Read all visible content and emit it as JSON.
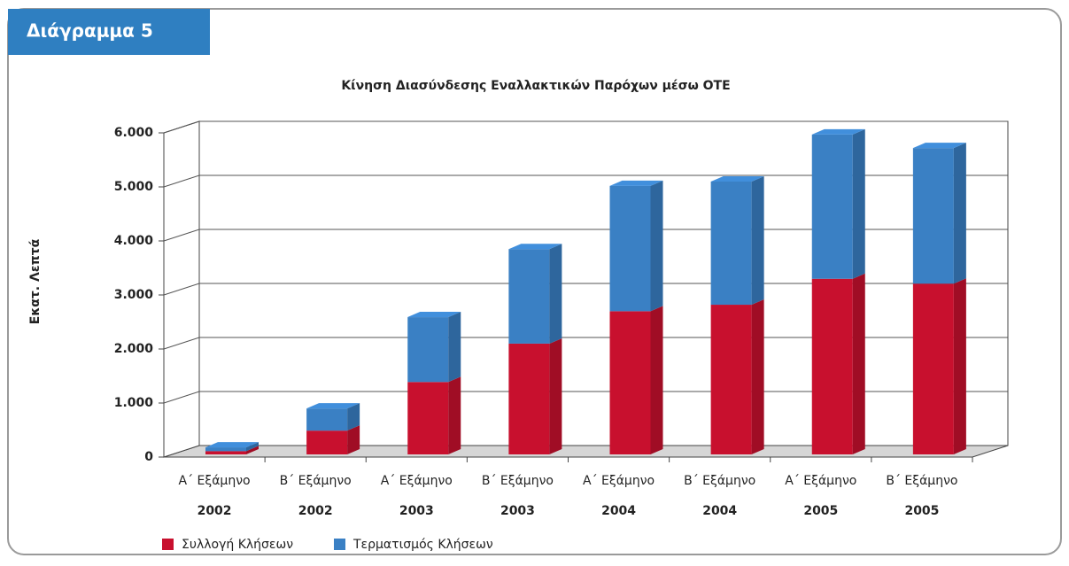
{
  "header": {
    "label": "Διάγραμμα 5"
  },
  "chart_data": {
    "type": "bar3d_stacked",
    "title": "Κίνηση Διασύνδεσης Εναλλακτικών Παρόχων μέσω ΟΤΕ",
    "y_label": "Εκατ. Λεπτά",
    "categories": [
      [
        "Α΄ Εξάμηνο",
        "2002"
      ],
      [
        "Β΄ Εξάμηνο",
        "2002"
      ],
      [
        "Α΄ Εξάμηνο",
        "2003"
      ],
      [
        "Β΄ Εξάμηνο",
        "2003"
      ],
      [
        "Α΄ Εξάμηνο",
        "2004"
      ],
      [
        "Β΄ Εξάμηνο",
        "2004"
      ],
      [
        "Α΄ Εξάμηνο",
        "2005"
      ],
      [
        "Β΄ Εξάμηνο",
        "2005"
      ]
    ],
    "series": [
      {
        "name": "Συλλογή Κλήσεων",
        "color": "#c8102e",
        "values": [
          60,
          440,
          1340,
          2050,
          2650,
          2770,
          3250,
          3160
        ]
      },
      {
        "name": "Τερματισμός Κλήσεων",
        "color": "#3a80c4",
        "values": [
          70,
          410,
          1200,
          1750,
          2320,
          2280,
          2670,
          2510
        ]
      }
    ],
    "ylim": [
      0,
      6000
    ],
    "yticks": [
      0,
      {
        "value": 1000,
        "label": "1.000"
      },
      {
        "value": 2000,
        "label": "2.000"
      },
      {
        "value": 3000,
        "label": "3.000"
      },
      {
        "value": 4000,
        "label": "4.000"
      },
      {
        "value": 5000,
        "label": "5.000"
      },
      {
        "value": 6000,
        "label": "6.000"
      }
    ],
    "grid": true
  }
}
